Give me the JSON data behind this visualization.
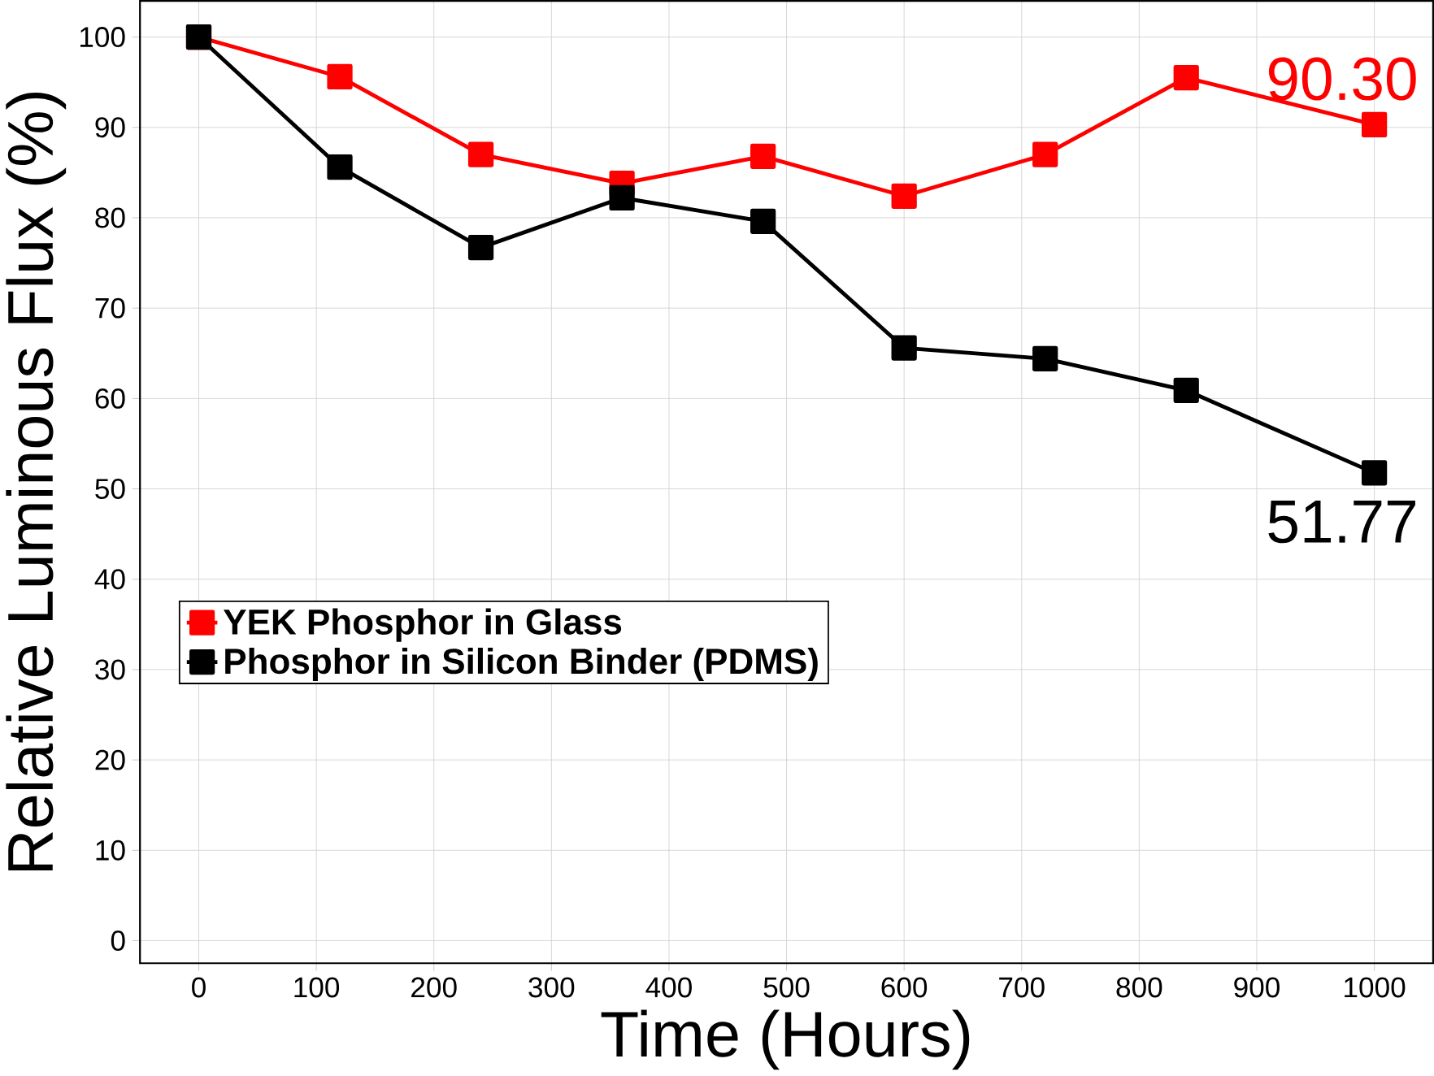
{
  "chart_data": {
    "type": "line",
    "xlabel": "Time (Hours)",
    "ylabel": "Relative Luminous Flux (%)",
    "xlim": [
      -50,
      1050
    ],
    "ylim": [
      -2.5,
      104
    ],
    "xticks": [
      0,
      100,
      200,
      300,
      400,
      500,
      600,
      700,
      800,
      900,
      1000
    ],
    "yticks": [
      0,
      10,
      20,
      30,
      40,
      50,
      60,
      70,
      80,
      90,
      100
    ],
    "grid": true,
    "legend": "bottom left",
    "marker": "square",
    "line_style": "solid",
    "series": [
      {
        "name": "YEK Phosphor in Glass",
        "color": "#ff0000",
        "x": [
          0,
          120,
          240,
          360,
          480,
          600,
          720,
          840,
          1000
        ],
        "values": [
          100,
          95.6,
          87,
          83.8,
          86.8,
          82.4,
          87,
          95.5,
          90.3
        ]
      },
      {
        "name": "Phosphor in Silicon Binder (PDMS)",
        "color": "#000000",
        "x": [
          0,
          120,
          240,
          360,
          480,
          600,
          720,
          840,
          1000
        ],
        "values": [
          100,
          85.6,
          76.7,
          82.2,
          79.6,
          65.6,
          64.4,
          60.9,
          51.77
        ]
      }
    ],
    "annotations": [
      {
        "text": "90.30",
        "x": 1000,
        "y": 90.3
      },
      {
        "text": "51.77",
        "x": 1000,
        "y": 51.77
      }
    ]
  }
}
